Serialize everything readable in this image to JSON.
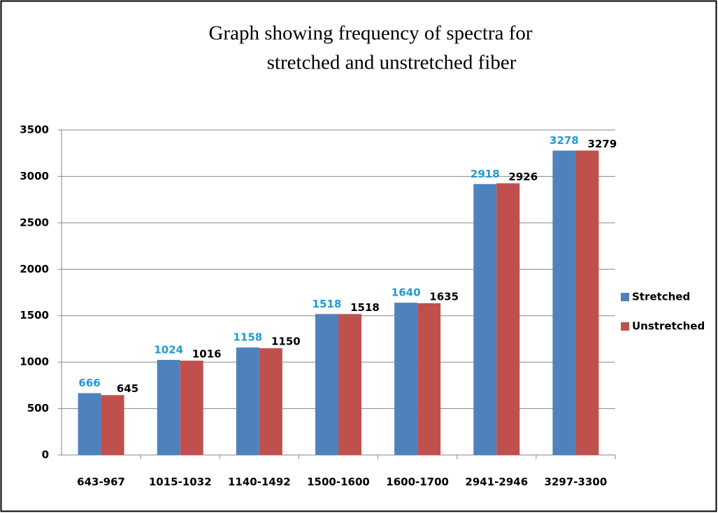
{
  "chart_data": {
    "type": "bar",
    "title": [
      "Graph showing frequency of spectra for",
      "stretched and unstretched fiber"
    ],
    "categories": [
      "643-967",
      "1015-1032",
      "1140-1492",
      "1500-1600",
      "1600-1700",
      "2941-2946",
      "3297-3300"
    ],
    "series": [
      {
        "name": "Stretched",
        "color": "#4f81bd",
        "label_color": "#1f9bd1",
        "values": [
          666,
          1024,
          1158,
          1518,
          1640,
          2918,
          3278
        ]
      },
      {
        "name": "Unstretched",
        "color": "#c0504d",
        "label_color": "#000000",
        "values": [
          645,
          1016,
          1150,
          1518,
          1635,
          2926,
          3279
        ]
      }
    ],
    "ylim": [
      0,
      3500
    ],
    "yticks": [
      0,
      500,
      1000,
      1500,
      2000,
      2500,
      3000,
      3500
    ],
    "grid": true,
    "legend": "right"
  }
}
